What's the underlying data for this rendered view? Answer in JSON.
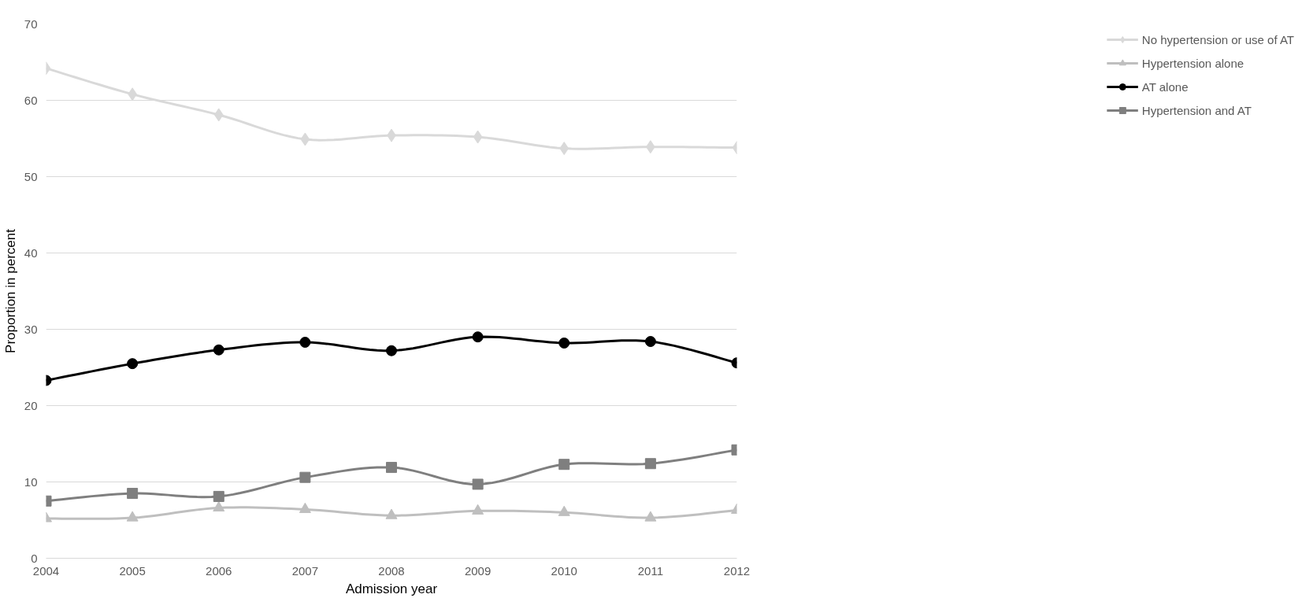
{
  "chart_data": {
    "type": "line",
    "xlabel": "Admission year",
    "ylabel": "Proportion in percent",
    "x": [
      2004,
      2005,
      2006,
      2007,
      2008,
      2009,
      2010,
      2011,
      2012
    ],
    "xlim": [
      2004,
      2012
    ],
    "xticks": [
      2004,
      2005,
      2006,
      2007,
      2008,
      2009,
      2010,
      2011,
      2012
    ],
    "ylim": [
      0,
      70
    ],
    "yticks": [
      0,
      10,
      20,
      30,
      40,
      50,
      60,
      70
    ],
    "grid": "y",
    "legend": "right",
    "line_style": "solid",
    "series": [
      {
        "name": "No hypertension or use of AT",
        "color": "#d9d9d9",
        "marker": "diamond",
        "values": [
          64.2,
          60.8,
          58.1,
          54.9,
          55.4,
          55.2,
          53.7,
          53.9,
          53.8
        ]
      },
      {
        "name": "Hypertension alone",
        "color": "#bfbfbf",
        "marker": "triangle",
        "values": [
          5.2,
          5.3,
          6.6,
          6.4,
          5.6,
          6.2,
          6.0,
          5.3,
          6.3
        ]
      },
      {
        "name": "AT alone",
        "color": "#000000",
        "marker": "circle",
        "values": [
          23.3,
          25.5,
          27.3,
          28.3,
          27.2,
          29.0,
          28.2,
          28.4,
          25.6
        ]
      },
      {
        "name": "Hypertension and AT",
        "color": "#7f7f7f",
        "marker": "square",
        "values": [
          7.5,
          8.5,
          8.1,
          10.6,
          11.9,
          9.7,
          12.3,
          12.4,
          14.2
        ]
      }
    ]
  }
}
